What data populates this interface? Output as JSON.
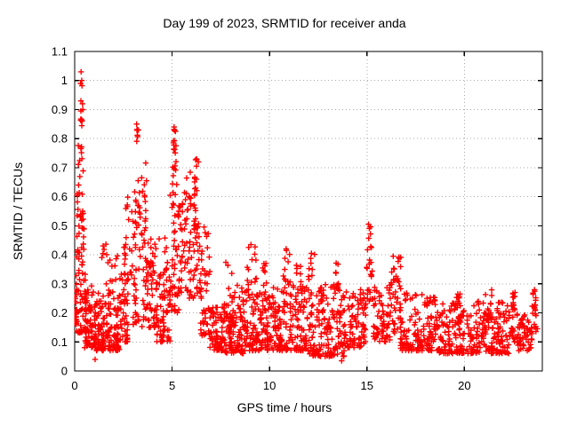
{
  "chart_data": {
    "type": "scatter",
    "title": "Day 199 of 2023, SRMTID for receiver anda",
    "xlabel": "GPS time / hours",
    "ylabel": "SRMTID / TECUs",
    "xlim": [
      0,
      24
    ],
    "ylim": [
      0,
      1.1
    ],
    "xticks": [
      0,
      5,
      10,
      15,
      20
    ],
    "xtick_labels": [
      "0",
      "5",
      "10",
      "15",
      "20"
    ],
    "yticks": [
      0,
      0.1,
      0.2,
      0.3,
      0.4,
      0.5,
      0.6,
      0.7,
      0.8,
      0.9,
      1.0,
      1.1
    ],
    "ytick_labels": [
      "0",
      "0.1",
      "0.2",
      "0.3",
      "0.4",
      "0.5",
      "0.6",
      "0.7",
      "0.8",
      "0.9",
      "1",
      "1.1"
    ],
    "grid": true,
    "legend": "none",
    "marker": "plus",
    "colors": {
      "points": "#ff0000",
      "grid": "#a8a8a8",
      "axis": "#000000",
      "text": "#000000",
      "background": "#ffffff"
    },
    "seed": 1318,
    "clusters_format": [
      "x_start_hours",
      "x_end_hours",
      "y_min_TECUs",
      "y_max_TECUs",
      "point_count",
      "bottom_bias_exponent",
      "apex_flag"
    ],
    "clusters": [
      [
        0.0,
        0.12,
        0.16,
        0.3,
        22,
        1.4,
        0
      ],
      [
        0.05,
        0.6,
        0.13,
        0.34,
        55,
        1.5,
        0
      ],
      [
        0.1,
        0.5,
        0.34,
        0.52,
        22,
        1.2,
        0
      ],
      [
        0.12,
        0.48,
        0.52,
        0.68,
        16,
        1.1,
        0
      ],
      [
        0.15,
        0.45,
        0.68,
        0.78,
        8,
        1.0,
        0
      ],
      [
        0.28,
        0.45,
        0.84,
        1.0,
        7,
        1.0,
        1
      ],
      [
        0.5,
        1.1,
        0.08,
        0.3,
        65,
        1.6,
        0
      ],
      [
        1.0,
        2.3,
        0.07,
        0.27,
        140,
        1.6,
        0
      ],
      [
        1.35,
        1.65,
        0.38,
        0.44,
        6,
        1.0,
        0
      ],
      [
        1.6,
        2.2,
        0.26,
        0.4,
        14,
        1.3,
        0
      ],
      [
        2.2,
        2.75,
        0.1,
        0.36,
        50,
        1.5,
        0
      ],
      [
        2.5,
        3.0,
        0.3,
        0.62,
        24,
        1.2,
        0
      ],
      [
        2.95,
        3.45,
        0.3,
        0.85,
        32,
        1.1,
        1
      ],
      [
        3.0,
        3.35,
        0.16,
        0.3,
        16,
        1.3,
        0
      ],
      [
        3.3,
        3.7,
        0.45,
        0.8,
        16,
        1.2,
        0
      ],
      [
        3.45,
        4.25,
        0.15,
        0.47,
        70,
        1.4,
        0
      ],
      [
        4.2,
        4.9,
        0.1,
        0.34,
        60,
        1.5,
        0
      ],
      [
        4.3,
        4.8,
        0.34,
        0.46,
        10,
        1.2,
        0
      ],
      [
        4.85,
        5.35,
        0.2,
        0.62,
        45,
        1.3,
        0
      ],
      [
        4.95,
        5.3,
        0.62,
        0.84,
        18,
        1.1,
        1
      ],
      [
        5.3,
        6.0,
        0.25,
        0.6,
        50,
        1.3,
        0
      ],
      [
        5.6,
        6.1,
        0.55,
        0.7,
        10,
        1.1,
        0
      ],
      [
        6.0,
        6.5,
        0.25,
        0.73,
        50,
        1.25,
        1
      ],
      [
        6.45,
        6.95,
        0.12,
        0.5,
        45,
        1.5,
        0
      ],
      [
        6.9,
        7.7,
        0.07,
        0.23,
        80,
        1.5,
        0
      ],
      [
        7.6,
        8.2,
        0.18,
        0.38,
        22,
        1.35,
        0
      ],
      [
        7.7,
        8.7,
        0.06,
        0.2,
        85,
        1.5,
        0
      ],
      [
        8.2,
        8.7,
        0.2,
        0.32,
        14,
        1.3,
        0
      ],
      [
        8.7,
        10.0,
        0.07,
        0.28,
        120,
        1.6,
        0
      ],
      [
        8.85,
        9.35,
        0.28,
        0.43,
        14,
        1.25,
        0
      ],
      [
        9.55,
        9.95,
        0.26,
        0.38,
        8,
        1.2,
        0
      ],
      [
        10.0,
        12.0,
        0.07,
        0.3,
        175,
        1.65,
        0
      ],
      [
        10.6,
        11.1,
        0.3,
        0.42,
        10,
        1.25,
        0
      ],
      [
        11.35,
        11.65,
        0.28,
        0.37,
        7,
        1.2,
        0
      ],
      [
        11.95,
        12.35,
        0.3,
        0.41,
        8,
        1.2,
        0
      ],
      [
        12.0,
        14.0,
        0.05,
        0.3,
        175,
        1.65,
        0
      ],
      [
        13.1,
        13.6,
        0.28,
        0.38,
        8,
        1.2,
        0
      ],
      [
        14.0,
        14.95,
        0.08,
        0.28,
        75,
        1.55,
        0
      ],
      [
        14.9,
        15.35,
        0.24,
        0.5,
        24,
        1.1,
        1
      ],
      [
        15.3,
        16.2,
        0.1,
        0.3,
        65,
        1.5,
        0
      ],
      [
        16.2,
        16.75,
        0.13,
        0.4,
        38,
        1.45,
        0
      ],
      [
        16.7,
        18.5,
        0.07,
        0.27,
        145,
        1.6,
        0
      ],
      [
        18.5,
        20.0,
        0.06,
        0.24,
        115,
        1.6,
        0
      ],
      [
        19.5,
        19.95,
        0.15,
        0.27,
        16,
        1.2,
        0
      ],
      [
        20.1,
        22.3,
        0.06,
        0.24,
        165,
        1.6,
        0
      ],
      [
        21.0,
        21.45,
        0.17,
        0.28,
        12,
        1.3,
        0
      ],
      [
        22.3,
        22.75,
        0.1,
        0.27,
        28,
        1.35,
        1
      ],
      [
        22.7,
        23.45,
        0.07,
        0.2,
        55,
        1.5,
        0
      ],
      [
        23.35,
        23.8,
        0.1,
        0.28,
        24,
        1.3,
        1
      ]
    ],
    "peak_points": [
      [
        0.33,
        1.03
      ],
      [
        0.36,
        1.0
      ],
      [
        0.3,
        0.99
      ],
      [
        0.4,
        0.92
      ],
      [
        0.42,
        0.9
      ],
      [
        0.38,
        0.86
      ],
      [
        3.18,
        0.85
      ],
      [
        3.24,
        0.83
      ],
      [
        5.1,
        0.84
      ],
      [
        5.17,
        0.825
      ],
      [
        6.25,
        0.73
      ],
      [
        6.35,
        0.72
      ],
      [
        1.05,
        0.04
      ],
      [
        13.7,
        0.035
      ],
      [
        15.08,
        0.505
      ],
      [
        16.35,
        0.395
      ],
      [
        9.05,
        0.435
      ],
      [
        10.85,
        0.42
      ],
      [
        12.15,
        0.405
      ],
      [
        22.6,
        0.27
      ],
      [
        23.6,
        0.28
      ]
    ]
  }
}
